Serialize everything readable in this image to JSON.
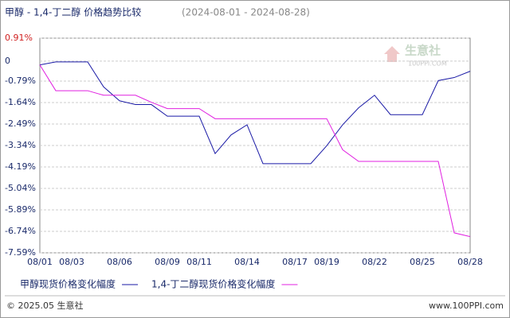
{
  "chart_data": {
    "type": "line",
    "title": "甲醇 - 1,4-丁二醇 价格趋势比较",
    "subtitle": "(2024-08-01 - 2024-08-28)",
    "categories": [
      "08/01",
      null,
      "08/03",
      null,
      null,
      "08/06",
      null,
      null,
      "08/09",
      null,
      "08/11",
      null,
      null,
      "08/14",
      null,
      null,
      "08/17",
      null,
      "08/19",
      null,
      null,
      "08/22",
      null,
      null,
      "08/25",
      null,
      null,
      "08/28"
    ],
    "series": [
      {
        "name": "甲醇现货价格变化幅度",
        "color": "#1a1aa6",
        "values": [
          -0.15,
          -0.03,
          -0.03,
          -0.03,
          -1.02,
          -1.57,
          -1.72,
          -1.72,
          -2.18,
          -2.18,
          -2.18,
          -3.66,
          -2.92,
          -2.52,
          -4.06,
          -4.06,
          -4.06,
          -4.06,
          -3.35,
          -2.52,
          -1.85,
          -1.35,
          -2.12,
          -2.12,
          -2.12,
          -0.77,
          -0.65,
          -0.4
        ]
      },
      {
        "name": "1,4-丁二醇现货价格变化幅度",
        "color": "#e020e0",
        "values": [
          -0.15,
          -1.17,
          -1.17,
          -1.17,
          -1.35,
          -1.35,
          -1.35,
          -1.63,
          -1.88,
          -1.88,
          -1.88,
          -2.28,
          -2.28,
          -2.28,
          -2.28,
          -2.28,
          -2.28,
          -2.28,
          -2.28,
          -3.51,
          -3.97,
          -3.97,
          -3.97,
          -3.97,
          -3.97,
          -3.97,
          -6.8,
          -6.95
        ]
      }
    ],
    "ylim": [
      -7.59,
      0.91
    ],
    "yticks": [
      {
        "value": 0.91,
        "label": "0.91%"
      },
      0,
      {
        "value": -0.79,
        "label": "-0.79%"
      },
      {
        "value": -1.64,
        "label": "-1.64%"
      },
      {
        "value": -2.49,
        "label": "-2.49%"
      },
      {
        "value": -3.34,
        "label": "-3.34%"
      },
      {
        "value": -4.19,
        "label": "-4.19%"
      },
      {
        "value": -5.04,
        "label": "-5.04%"
      },
      {
        "value": -5.89,
        "label": "-5.89%"
      },
      {
        "value": -6.74,
        "label": "-6.74%"
      },
      {
        "value": -7.59,
        "label": "-7.59%"
      }
    ],
    "grid": true,
    "watermark": {
      "name": "生意社",
      "site": "100PPI.COM"
    },
    "footer": {
      "left": "© 2025.05 生意社",
      "right": "www.100PPI.com"
    }
  }
}
